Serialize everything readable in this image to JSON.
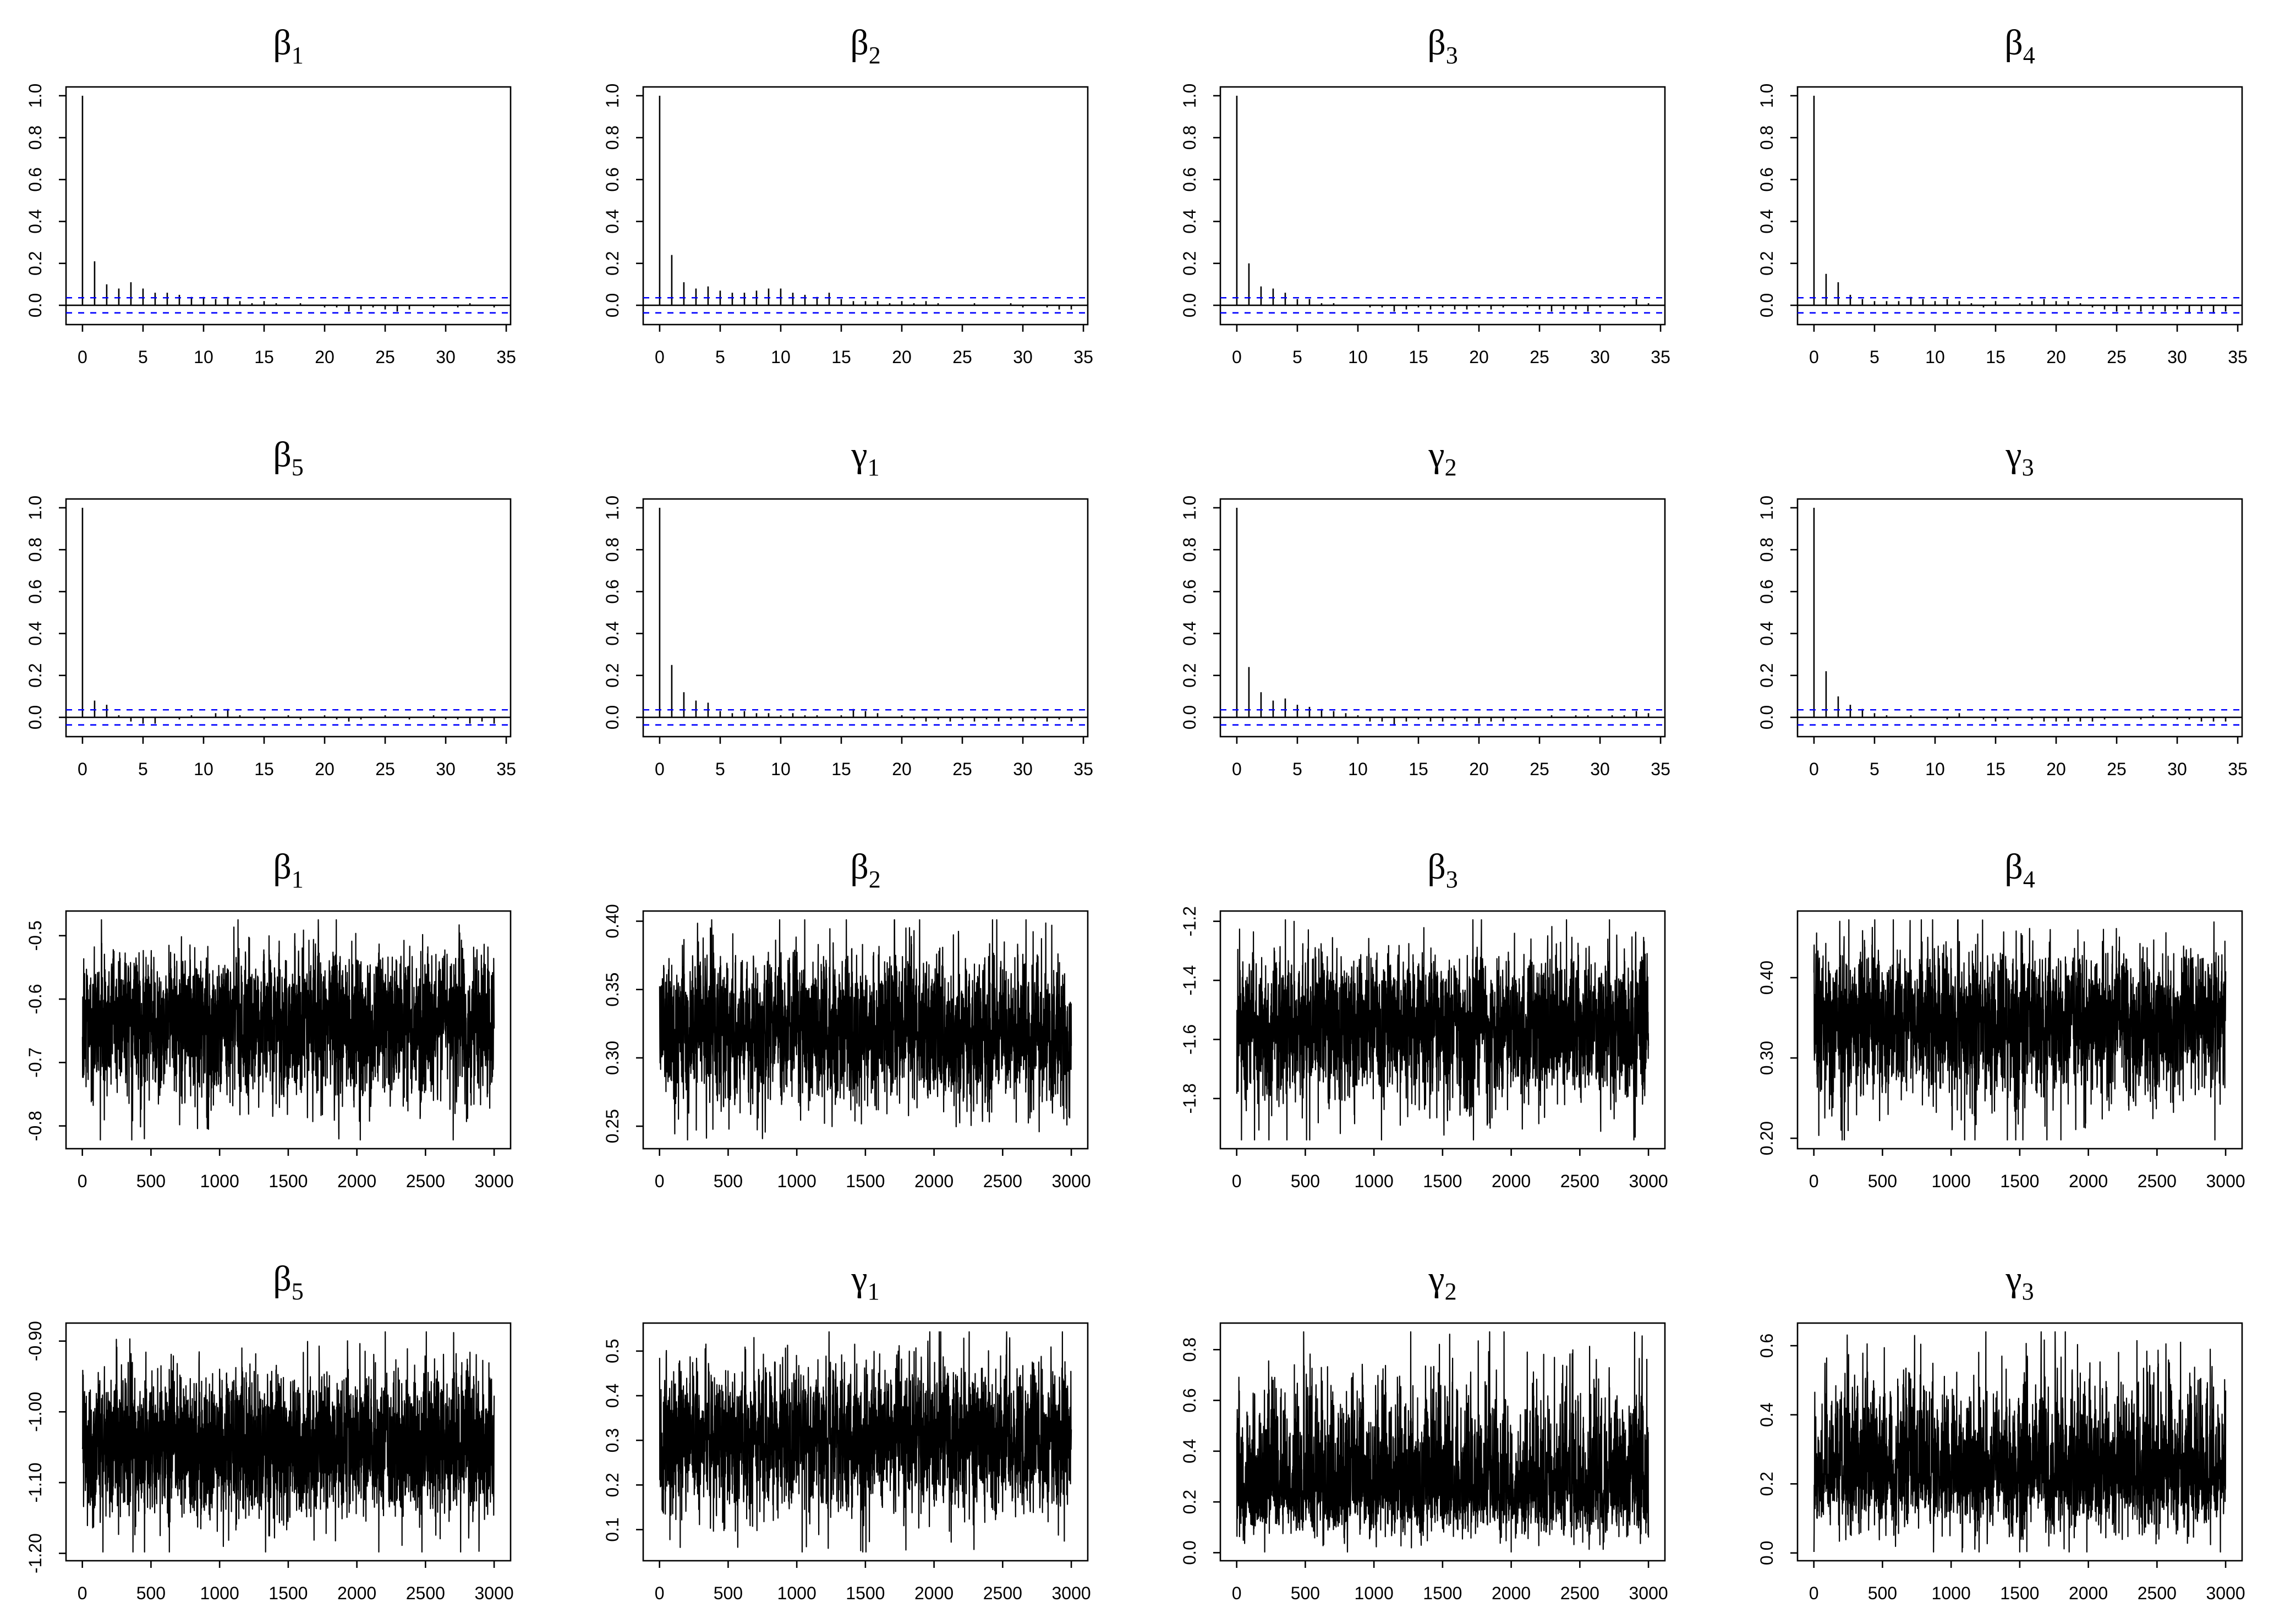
{
  "chart_data": [
    {
      "type": "bar",
      "title": {
        "symbol": "β",
        "sub": "1"
      },
      "x": [
        0,
        1,
        2,
        3,
        4,
        5,
        6,
        7,
        8,
        9,
        10,
        11,
        12,
        13,
        14,
        15,
        16,
        17,
        18,
        19,
        20,
        21,
        22,
        23,
        24,
        25,
        26,
        27,
        28,
        29,
        30,
        31,
        32,
        33,
        34
      ],
      "values": [
        1.0,
        0.21,
        0.1,
        0.08,
        0.11,
        0.08,
        0.06,
        0.06,
        0.05,
        0.04,
        0.04,
        0.03,
        0.04,
        0.02,
        0.01,
        0.02,
        0.01,
        0,
        0.01,
        0,
        -0.01,
        -0.01,
        -0.03,
        -0.02,
        -0.01,
        -0.02,
        -0.03,
        -0.02,
        0,
        -0.01,
        0,
        -0.01,
        0.01,
        0,
        -0.01
      ],
      "xlim": [
        0,
        34
      ],
      "ylim": [
        -0.05,
        1.0
      ],
      "xticks": [
        "0",
        "5",
        "10",
        "15",
        "20",
        "25",
        "30",
        "35"
      ],
      "yticks": [
        "0.0",
        "0.2",
        "0.4",
        "0.6",
        "0.8",
        "1.0"
      ],
      "ci_bounds": [
        -0.036,
        0.036
      ],
      "ci_color": "#0000FF",
      "line_color": "#000000"
    },
    {
      "type": "bar",
      "title": {
        "symbol": "β",
        "sub": "2"
      },
      "x": [
        0,
        1,
        2,
        3,
        4,
        5,
        6,
        7,
        8,
        9,
        10,
        11,
        12,
        13,
        14,
        15,
        16,
        17,
        18,
        19,
        20,
        21,
        22,
        23,
        24,
        25,
        26,
        27,
        28,
        29,
        30,
        31,
        32,
        33,
        34
      ],
      "values": [
        1.0,
        0.24,
        0.11,
        0.08,
        0.09,
        0.07,
        0.06,
        0.06,
        0.07,
        0.08,
        0.08,
        0.06,
        0.05,
        0.04,
        0.06,
        0.03,
        0.02,
        0.02,
        0.02,
        0.01,
        0.02,
        0.01,
        0.02,
        0.01,
        0,
        0,
        0.01,
        0,
        0,
        0.01,
        -0.01,
        0,
        -0.01,
        -0.02,
        -0.02
      ],
      "xlim": [
        0,
        34
      ],
      "ylim": [
        -0.05,
        1.0
      ],
      "xticks": [
        "0",
        "5",
        "10",
        "15",
        "20",
        "25",
        "30",
        "35"
      ],
      "yticks": [
        "0.0",
        "0.2",
        "0.4",
        "0.6",
        "0.8",
        "1.0"
      ],
      "ci_bounds": [
        -0.036,
        0.036
      ],
      "ci_color": "#0000FF",
      "line_color": "#000000"
    },
    {
      "type": "bar",
      "title": {
        "symbol": "β",
        "sub": "3"
      },
      "x": [
        0,
        1,
        2,
        3,
        4,
        5,
        6,
        7,
        8,
        9,
        10,
        11,
        12,
        13,
        14,
        15,
        16,
        17,
        18,
        19,
        20,
        21,
        22,
        23,
        24,
        25,
        26,
        27,
        28,
        29,
        30,
        31,
        32,
        33,
        34
      ],
      "values": [
        1.0,
        0.2,
        0.09,
        0.08,
        0.06,
        0.03,
        0.03,
        0.01,
        0.01,
        0,
        0,
        -0.01,
        -0.01,
        -0.03,
        -0.02,
        -0.01,
        -0.02,
        -0.01,
        -0.02,
        -0.02,
        -0.01,
        -0.02,
        -0.01,
        0,
        -0.01,
        -0.02,
        -0.03,
        -0.02,
        -0.02,
        -0.03,
        -0.01,
        0,
        -0.01,
        0.03,
        0.01
      ],
      "xlim": [
        0,
        34
      ],
      "ylim": [
        -0.05,
        1.0
      ],
      "xticks": [
        "0",
        "5",
        "10",
        "15",
        "20",
        "25",
        "30",
        "35"
      ],
      "yticks": [
        "0.0",
        "0.2",
        "0.4",
        "0.6",
        "0.8",
        "1.0"
      ],
      "ci_bounds": [
        -0.036,
        0.036
      ],
      "ci_color": "#0000FF",
      "line_color": "#000000"
    },
    {
      "type": "bar",
      "title": {
        "symbol": "β",
        "sub": "4"
      },
      "x": [
        0,
        1,
        2,
        3,
        4,
        5,
        6,
        7,
        8,
        9,
        10,
        11,
        12,
        13,
        14,
        15,
        16,
        17,
        18,
        19,
        20,
        21,
        22,
        23,
        24,
        25,
        26,
        27,
        28,
        29,
        30,
        31,
        32,
        33,
        34
      ],
      "values": [
        1.0,
        0.15,
        0.11,
        0.05,
        0.03,
        0.02,
        0.02,
        0.02,
        0.04,
        0.03,
        0.02,
        0.03,
        0.02,
        0.01,
        -0.01,
        0.02,
        0,
        0.01,
        0.02,
        0.03,
        0.02,
        0.02,
        0.01,
        -0.01,
        -0.02,
        -0.03,
        -0.02,
        -0.03,
        -0.02,
        -0.03,
        -0.02,
        -0.04,
        -0.03,
        -0.04,
        -0.03
      ],
      "xlim": [
        0,
        34
      ],
      "ylim": [
        -0.05,
        1.0
      ],
      "xticks": [
        "0",
        "5",
        "10",
        "15",
        "20",
        "25",
        "30",
        "35"
      ],
      "yticks": [
        "0.0",
        "0.2",
        "0.4",
        "0.6",
        "0.8",
        "1.0"
      ],
      "ci_bounds": [
        -0.036,
        0.036
      ],
      "ci_color": "#0000FF",
      "line_color": "#000000"
    },
    {
      "type": "bar",
      "title": {
        "symbol": "β",
        "sub": "5"
      },
      "x": [
        0,
        1,
        2,
        3,
        4,
        5,
        6,
        7,
        8,
        9,
        10,
        11,
        12,
        13,
        14,
        15,
        16,
        17,
        18,
        19,
        20,
        21,
        22,
        23,
        24,
        25,
        26,
        27,
        28,
        29,
        30,
        31,
        32,
        33,
        34
      ],
      "values": [
        1.0,
        0.08,
        0.06,
        0.01,
        -0.02,
        -0.03,
        -0.03,
        0,
        -0.01,
        0.01,
        0,
        0.02,
        0.04,
        0.01,
        0,
        -0.01,
        0,
        0.01,
        -0.01,
        0,
        0.01,
        -0.01,
        -0.02,
        -0.01,
        0,
        0.01,
        0,
        -0.01,
        0,
        0.01,
        -0.01,
        -0.01,
        -0.03,
        -0.02,
        -0.03
      ],
      "xlim": [
        0,
        34
      ],
      "ylim": [
        -0.05,
        1.0
      ],
      "xticks": [
        "0",
        "5",
        "10",
        "15",
        "20",
        "25",
        "30",
        "35"
      ],
      "yticks": [
        "0.0",
        "0.2",
        "0.4",
        "0.6",
        "0.8",
        "1.0"
      ],
      "ci_bounds": [
        -0.036,
        0.036
      ],
      "ci_color": "#0000FF",
      "line_color": "#000000"
    },
    {
      "type": "bar",
      "title": {
        "symbol": "γ",
        "sub": "1"
      },
      "x": [
        0,
        1,
        2,
        3,
        4,
        5,
        6,
        7,
        8,
        9,
        10,
        11,
        12,
        13,
        14,
        15,
        16,
        17,
        18,
        19,
        20,
        21,
        22,
        23,
        24,
        25,
        26,
        27,
        28,
        29,
        30,
        31,
        32,
        33,
        34
      ],
      "values": [
        1.0,
        0.25,
        0.12,
        0.08,
        0.07,
        0.03,
        0.02,
        0.03,
        0.02,
        0.02,
        0.01,
        0.02,
        0.01,
        0.01,
        0,
        0.01,
        0.04,
        0.03,
        0.02,
        0,
        0.01,
        -0.01,
        -0.02,
        -0.01,
        -0.02,
        -0.01,
        -0.02,
        -0.01,
        -0.02,
        -0.01,
        -0.02,
        -0.01,
        -0.02,
        -0.01,
        -0.02
      ],
      "xlim": [
        0,
        34
      ],
      "ylim": [
        -0.05,
        1.0
      ],
      "xticks": [
        "0",
        "5",
        "10",
        "15",
        "20",
        "25",
        "30",
        "35"
      ],
      "yticks": [
        "0.0",
        "0.2",
        "0.4",
        "0.6",
        "0.8",
        "1.0"
      ],
      "ci_bounds": [
        -0.036,
        0.036
      ],
      "ci_color": "#0000FF",
      "line_color": "#000000"
    },
    {
      "type": "bar",
      "title": {
        "symbol": "γ",
        "sub": "2"
      },
      "x": [
        0,
        1,
        2,
        3,
        4,
        5,
        6,
        7,
        8,
        9,
        10,
        11,
        12,
        13,
        14,
        15,
        16,
        17,
        18,
        19,
        20,
        21,
        22,
        23,
        24,
        25,
        26,
        27,
        28,
        29,
        30,
        31,
        32,
        33,
        34
      ],
      "values": [
        1.0,
        0.24,
        0.12,
        0.08,
        0.09,
        0.06,
        0.05,
        0.04,
        0.03,
        0.02,
        0.01,
        -0.02,
        -0.02,
        -0.04,
        -0.02,
        -0.01,
        -0.02,
        -0.02,
        -0.01,
        -0.02,
        -0.03,
        -0.02,
        -0.02,
        -0.01,
        0,
        0,
        0.01,
        0,
        0.01,
        0.01,
        0,
        0.01,
        0.01,
        0.03,
        0.02
      ],
      "xlim": [
        0,
        34
      ],
      "ylim": [
        -0.05,
        1.0
      ],
      "xticks": [
        "0",
        "5",
        "10",
        "15",
        "20",
        "25",
        "30",
        "35"
      ],
      "yticks": [
        "0.0",
        "0.2",
        "0.4",
        "0.6",
        "0.8",
        "1.0"
      ],
      "ci_bounds": [
        -0.036,
        0.036
      ],
      "ci_color": "#0000FF",
      "line_color": "#000000"
    },
    {
      "type": "bar",
      "title": {
        "symbol": "γ",
        "sub": "3"
      },
      "x": [
        0,
        1,
        2,
        3,
        4,
        5,
        6,
        7,
        8,
        9,
        10,
        11,
        12,
        13,
        14,
        15,
        16,
        17,
        18,
        19,
        20,
        21,
        22,
        23,
        24,
        25,
        26,
        27,
        28,
        29,
        30,
        31,
        32,
        33,
        34
      ],
      "values": [
        1.0,
        0.22,
        0.1,
        0.06,
        0.04,
        0.02,
        0.01,
        0,
        0.01,
        0,
        0,
        -0.01,
        0.02,
        0,
        -0.01,
        -0.02,
        -0.01,
        0,
        -0.01,
        -0.02,
        -0.02,
        -0.02,
        -0.02,
        -0.02,
        -0.01,
        0,
        0,
        -0.01,
        0.01,
        0,
        -0.01,
        -0.01,
        -0.02,
        -0.02,
        -0.02
      ],
      "xlim": [
        0,
        34
      ],
      "ylim": [
        -0.05,
        1.0
      ],
      "xticks": [
        "0",
        "5",
        "10",
        "15",
        "20",
        "25",
        "30",
        "35"
      ],
      "yticks": [
        "0.0",
        "0.2",
        "0.4",
        "0.6",
        "0.8",
        "1.0"
      ],
      "ci_bounds": [
        -0.036,
        0.036
      ],
      "ci_color": "#0000FF",
      "line_color": "#000000"
    },
    {
      "type": "line",
      "title": {
        "symbol": "β",
        "sub": "1"
      },
      "n": 3000,
      "xlim": [
        1,
        3000
      ],
      "ylim": [
        -0.822,
        -0.475
      ],
      "y_center": -0.635,
      "min_point": {
        "x": 360,
        "y": -0.822
      },
      "max_point": {
        "x": 1850,
        "y": -0.475
      },
      "xticks": [
        "0",
        "500",
        "1000",
        "1500",
        "2000",
        "2500",
        "3000"
      ],
      "yticks": [
        "-0.8",
        "-0.7",
        "-0.6",
        "-0.5"
      ],
      "line_color": "#000000"
    },
    {
      "type": "line",
      "title": {
        "symbol": "β",
        "sub": "2"
      },
      "n": 3000,
      "xlim": [
        1,
        3000
      ],
      "ylim": [
        0.24,
        0.401
      ],
      "y_center": 0.318,
      "min_point": {
        "x": 204,
        "y": 0.24
      },
      "max_point": {
        "x": 1361,
        "y": 0.401
      },
      "xticks": [
        "0",
        "500",
        "1000",
        "1500",
        "2000",
        "2500",
        "3000"
      ],
      "yticks": [
        "0.25",
        "0.30",
        "0.35",
        "0.40"
      ],
      "line_color": "#000000"
    },
    {
      "type": "line",
      "title": {
        "symbol": "β",
        "sub": "3"
      },
      "n": 3000,
      "xlim": [
        1,
        3000
      ],
      "ylim": [
        -1.94,
        -1.195
      ],
      "y_center": -1.55,
      "min_point": {
        "x": 130,
        "y": -1.94
      },
      "max_point": {
        "x": 355,
        "y": -1.195
      },
      "xticks": [
        "0",
        "500",
        "1000",
        "1500",
        "2000",
        "2500",
        "3000"
      ],
      "yticks": [
        "-1.8",
        "-1.6",
        "-1.4",
        "-1.2"
      ],
      "line_color": "#000000"
    },
    {
      "type": "line",
      "title": {
        "symbol": "β",
        "sub": "4"
      },
      "n": 3000,
      "xlim": [
        1,
        3000
      ],
      "ylim": [
        0.198,
        0.472
      ],
      "y_center": 0.345,
      "min_point": {
        "x": 1800,
        "y": 0.198
      },
      "max_point": {
        "x": 1050,
        "y": 0.472
      },
      "xticks": [
        "0",
        "500",
        "1000",
        "1500",
        "2000",
        "2500",
        "3000"
      ],
      "yticks": [
        "0.20",
        "0.30",
        "0.40"
      ],
      "line_color": "#000000"
    },
    {
      "type": "line",
      "title": {
        "symbol": "β",
        "sub": "5"
      },
      "n": 3000,
      "xlim": [
        1,
        3000
      ],
      "ylim": [
        -1.198,
        -0.887
      ],
      "y_center": -1.05,
      "min_point": {
        "x": 150,
        "y": -1.198
      },
      "max_point": {
        "x": 2207,
        "y": -0.887
      },
      "xticks": [
        "0",
        "500",
        "1000",
        "1500",
        "2000",
        "2500",
        "3000"
      ],
      "yticks": [
        "-1.20",
        "-1.10",
        "-1.00",
        "-0.90"
      ],
      "line_color": "#000000"
    },
    {
      "type": "line",
      "title": {
        "symbol": "γ",
        "sub": "1"
      },
      "n": 3000,
      "xlim": [
        1,
        3000
      ],
      "ylim": [
        0.05,
        0.543
      ],
      "y_center": 0.31,
      "min_point": {
        "x": 1039,
        "y": 0.05
      },
      "max_point": {
        "x": 2529,
        "y": 0.543
      },
      "xticks": [
        "0",
        "500",
        "1000",
        "1500",
        "2000",
        "2500",
        "3000"
      ],
      "yticks": [
        "0.1",
        "0.2",
        "0.3",
        "0.4",
        "0.5"
      ],
      "line_color": "#000000"
    },
    {
      "type": "line",
      "title": {
        "symbol": "γ",
        "sub": "2"
      },
      "n": 3000,
      "xlim": [
        1,
        3000
      ],
      "ylim": [
        0.003,
        0.87
      ],
      "y_center": 0.25,
      "min_point": {
        "x": 2000,
        "y": 0.003
      },
      "max_point": {
        "x": 1843,
        "y": 0.87
      },
      "xticks": [
        "0",
        "500",
        "1000",
        "1500",
        "2000",
        "2500",
        "3000"
      ],
      "yticks": [
        "0.0",
        "0.2",
        "0.4",
        "0.6",
        "0.8"
      ],
      "line_color": "#000000"
    },
    {
      "type": "line",
      "title": {
        "symbol": "γ",
        "sub": "3"
      },
      "n": 3000,
      "xlim": [
        1,
        3000
      ],
      "ylim": [
        0.003,
        0.64
      ],
      "y_center": 0.23,
      "min_point": {
        "x": 1500,
        "y": 0.003
      },
      "max_point": {
        "x": 1832,
        "y": 0.64
      },
      "xticks": [
        "0",
        "500",
        "1000",
        "1500",
        "2000",
        "2500",
        "3000"
      ],
      "yticks": [
        "0.0",
        "0.2",
        "0.4",
        "0.6"
      ],
      "line_color": "#000000"
    }
  ]
}
